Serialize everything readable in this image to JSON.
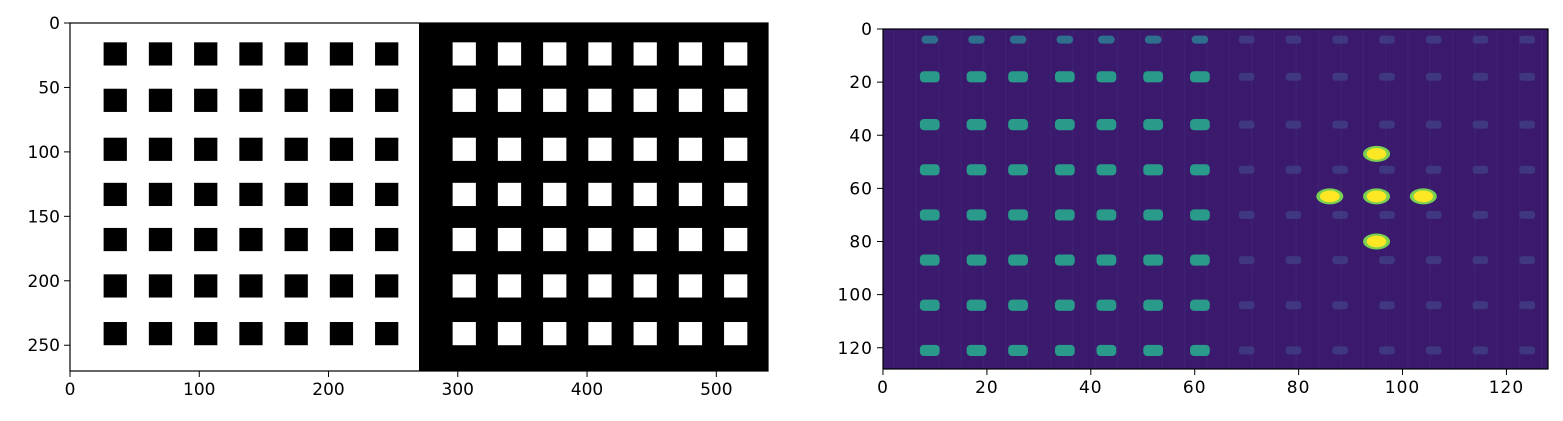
{
  "chart_data": [
    {
      "type": "heatmap",
      "title": "",
      "xlabel": "",
      "ylabel": "",
      "xlim": [
        0,
        540
      ],
      "ylim": [
        270,
        0
      ],
      "x_ticks": [
        0,
        100,
        200,
        300,
        400,
        500
      ],
      "y_ticks": [
        0,
        50,
        100,
        150,
        200,
        250
      ],
      "colormap": "gray",
      "background": {
        "left_half": "#ffffff",
        "right_half": "#000000",
        "split_x": 270
      },
      "grid": {
        "columns": [
          35,
          70,
          105,
          140,
          175,
          210,
          245,
          305,
          340,
          375,
          410,
          445,
          480,
          515
        ],
        "rows": [
          24,
          60,
          98,
          133,
          168,
          204,
          241
        ],
        "square_size": 18
      },
      "square_colors": {
        "left_half": "#000000",
        "right_half": "#ffffff",
        "highlight": "#8c8c8c"
      },
      "highlight_cells": [
        [
          133,
          98
        ],
        [
          98,
          133
        ],
        [
          133,
          133
        ],
        [
          168,
          133
        ],
        [
          133,
          168
        ],
        [
          403,
          98
        ],
        [
          368,
          133
        ],
        [
          403,
          133
        ],
        [
          438,
          133
        ],
        [
          403,
          168
        ]
      ]
    },
    {
      "type": "heatmap",
      "title": "",
      "xlabel": "",
      "ylabel": "",
      "xlim": [
        0,
        128
      ],
      "ylim": [
        128,
        0
      ],
      "x_ticks": [
        0,
        20,
        40,
        60,
        80,
        100,
        120
      ],
      "y_ticks": [
        0,
        20,
        40,
        60,
        80,
        100,
        120
      ],
      "colormap": "viridis",
      "background_color": "#3b1a6e",
      "grid": {
        "columns": [
          9,
          18,
          26,
          35,
          43,
          52,
          61
        ],
        "rows": [
          4,
          18,
          36,
          53,
          70,
          87,
          104,
          121
        ]
      },
      "medium_spot_color": "#2a9b8a",
      "bright_spots": [
        {
          "x": 95,
          "y": 47,
          "color": "#fde725"
        },
        {
          "x": 86,
          "y": 63,
          "color": "#fde725"
        },
        {
          "x": 95,
          "y": 63,
          "color": "#fde725"
        },
        {
          "x": 104,
          "y": 63,
          "color": "#fde725"
        },
        {
          "x": 95,
          "y": 80,
          "color": "#fde725"
        }
      ]
    }
  ]
}
